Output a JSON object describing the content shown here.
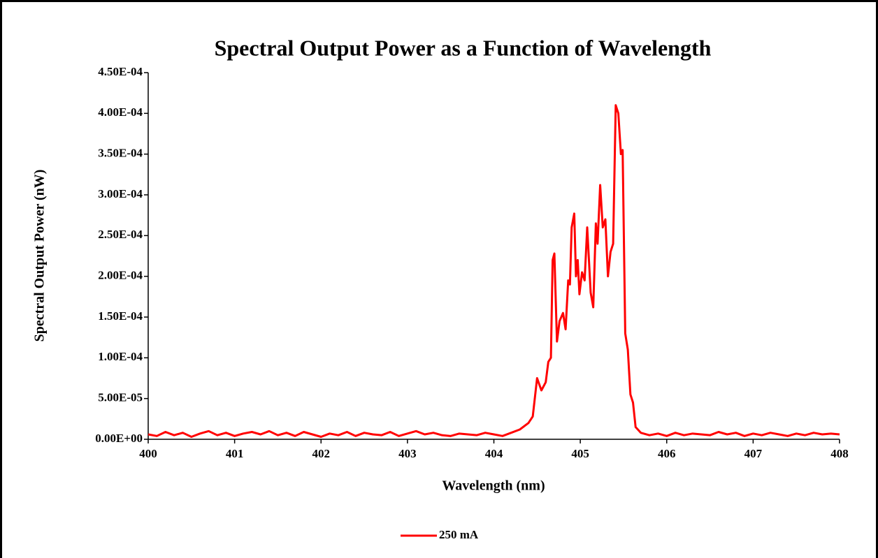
{
  "chart_data": {
    "type": "line",
    "title": "Spectral Output Power as a Function of Wavelength",
    "x_label": "Wavelength (nm)",
    "y_label": "Spectral Output Power (nW)",
    "xlim": [
      400,
      408
    ],
    "xticks": [
      400,
      401,
      402,
      403,
      404,
      405,
      406,
      407,
      408
    ],
    "ylim": [
      0,
      0.00045
    ],
    "yticks": [
      {
        "value": 0,
        "label": "0.00E+00"
      },
      {
        "value": 5e-05,
        "label": "5.00E-05"
      },
      {
        "value": 0.0001,
        "label": "1.00E-04"
      },
      {
        "value": 0.00015,
        "label": "1.50E-04"
      },
      {
        "value": 0.0002,
        "label": "2.00E-04"
      },
      {
        "value": 0.00025,
        "label": "2.50E-04"
      },
      {
        "value": 0.0003,
        "label": "3.00E-04"
      },
      {
        "value": 0.00035,
        "label": "3.50E-04"
      },
      {
        "value": 0.0004,
        "label": "4.00E-04"
      },
      {
        "value": 0.00045,
        "label": "4.50E-04"
      }
    ],
    "grid": false,
    "legend": "bottom",
    "x": [
      400.0,
      400.1,
      400.2,
      400.3,
      400.4,
      400.5,
      400.6,
      400.7,
      400.8,
      400.9,
      401.0,
      401.1,
      401.2,
      401.3,
      401.4,
      401.5,
      401.6,
      401.7,
      401.8,
      401.9,
      402.0,
      402.1,
      402.2,
      402.3,
      402.4,
      402.5,
      402.6,
      402.7,
      402.8,
      402.9,
      403.0,
      403.1,
      403.2,
      403.3,
      403.4,
      403.5,
      403.6,
      403.7,
      403.8,
      403.9,
      404.0,
      404.1,
      404.2,
      404.3,
      404.4,
      404.45,
      404.5,
      404.55,
      404.6,
      404.63,
      404.66,
      404.68,
      404.7,
      404.73,
      404.76,
      404.8,
      404.83,
      404.86,
      404.88,
      404.9,
      404.93,
      404.95,
      404.97,
      404.99,
      405.02,
      405.05,
      405.08,
      405.1,
      405.12,
      405.15,
      405.18,
      405.2,
      405.23,
      405.26,
      405.29,
      405.32,
      405.35,
      405.38,
      405.41,
      405.44,
      405.47,
      405.49,
      405.52,
      405.55,
      405.58,
      405.61,
      405.64,
      405.7,
      405.8,
      405.9,
      406.0,
      406.1,
      406.2,
      406.3,
      406.4,
      406.5,
      406.6,
      406.7,
      406.8,
      406.9,
      407.0,
      407.1,
      407.2,
      407.3,
      407.4,
      407.5,
      407.6,
      407.7,
      407.8,
      407.9,
      408.0
    ],
    "series": [
      {
        "name": "250 mA",
        "color": "#ff0000",
        "values": [
          6e-06,
          4e-06,
          9e-06,
          5e-06,
          8e-06,
          3e-06,
          7e-06,
          1e-05,
          5e-06,
          8e-06,
          4e-06,
          7e-06,
          9e-06,
          6e-06,
          1e-05,
          5e-06,
          8e-06,
          4e-06,
          9e-06,
          6e-06,
          3e-06,
          7e-06,
          5e-06,
          9e-06,
          4e-06,
          8e-06,
          6e-06,
          5e-06,
          9e-06,
          4e-06,
          7e-06,
          1e-05,
          6e-06,
          8e-06,
          5e-06,
          4e-06,
          7e-06,
          6e-06,
          5e-06,
          8e-06,
          6e-06,
          4e-06,
          8e-06,
          1.2e-05,
          2e-05,
          2.8e-05,
          7.5e-05,
          6e-05,
          7e-05,
          9.5e-05,
          0.0001,
          0.00022,
          0.000228,
          0.00012,
          0.000145,
          0.000155,
          0.000135,
          0.000195,
          0.00019,
          0.00026,
          0.000277,
          0.0002,
          0.00022,
          0.000178,
          0.000205,
          0.000195,
          0.00026,
          0.00022,
          0.00018,
          0.000162,
          0.000265,
          0.00024,
          0.000312,
          0.00026,
          0.00027,
          0.0002,
          0.00023,
          0.00024,
          0.00041,
          0.0004,
          0.00035,
          0.000355,
          0.00013,
          0.00011,
          5.5e-05,
          4.5e-05,
          1.5e-05,
          8e-06,
          5e-06,
          7e-06,
          4e-06,
          8e-06,
          5e-06,
          7e-06,
          6e-06,
          5e-06,
          9e-06,
          6e-06,
          8e-06,
          4e-06,
          7e-06,
          5e-06,
          8e-06,
          6e-06,
          4e-06,
          7e-06,
          5e-06,
          8e-06,
          6e-06,
          7e-06,
          6e-06
        ]
      }
    ]
  }
}
